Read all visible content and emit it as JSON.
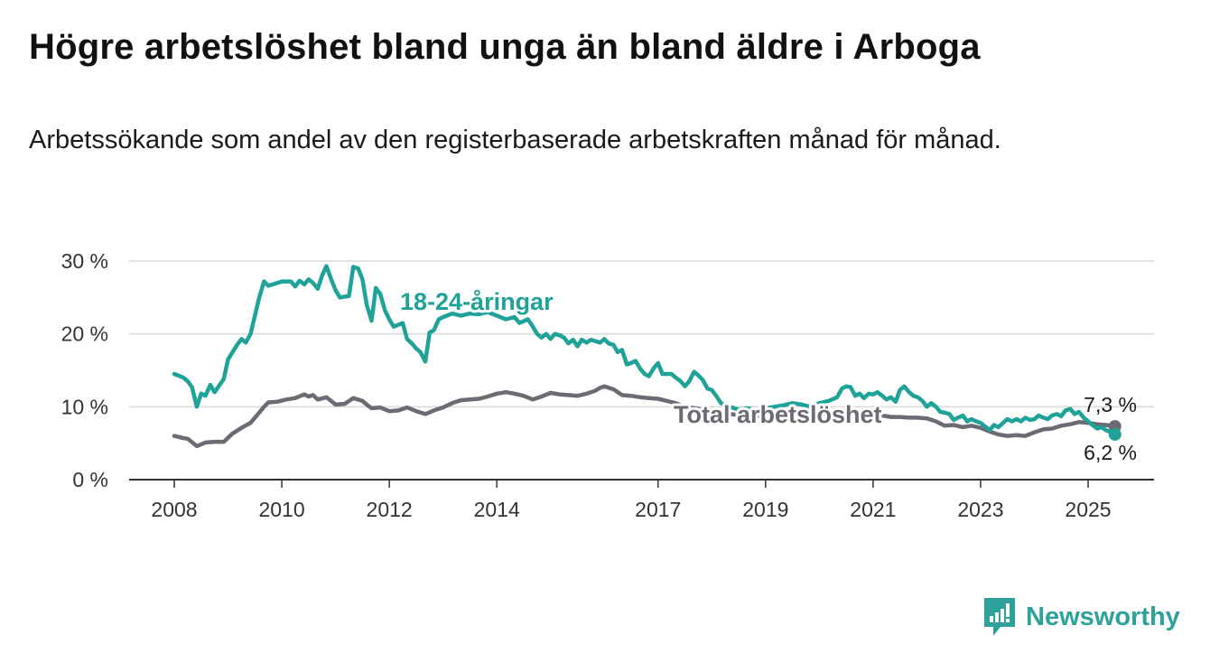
{
  "title": "Högre arbetslöshet bland unga än bland äldre i Arboga",
  "subtitle": "Arbetssökande som andel av den registerbaserade arbetskraften månad för månad.",
  "brand": {
    "name": "Newsworthy",
    "icon": "newsworthy-logo-icon",
    "color": "#2ea29a"
  },
  "chart_data": {
    "type": "line",
    "title": "Högre arbetslöshet bland unga än bland äldre i Arboga",
    "subtitle": "Arbetssökande som andel av den registerbaserade arbetskraften månad för månad.",
    "xlabel": "",
    "ylabel": "",
    "xlim": [
      2007.5,
      2026.25
    ],
    "ylim": [
      0,
      30
    ],
    "grid": true,
    "legend": "inline labels",
    "x_ticks": [
      2008,
      2010,
      2012,
      2014,
      2017,
      2019,
      2021,
      2023,
      2025
    ],
    "x_tick_labels": [
      "2008",
      "2010",
      "2012",
      "2014",
      "2017",
      "2019",
      "2021",
      "2023",
      "2025"
    ],
    "y_ticks": [
      0,
      10,
      20,
      30
    ],
    "y_tick_labels": [
      "0 %",
      "10 %",
      "20 %",
      "30 %"
    ],
    "series": [
      {
        "name": "18-24-åringar",
        "color": "#1fa398",
        "end_label": "6,2 %",
        "points": [
          [
            2008.0,
            14.5
          ],
          [
            2008.17,
            14.0
          ],
          [
            2008.25,
            13.5
          ],
          [
            2008.33,
            12.7
          ],
          [
            2008.42,
            10.0
          ],
          [
            2008.5,
            11.8
          ],
          [
            2008.58,
            11.5
          ],
          [
            2008.67,
            13.0
          ],
          [
            2008.75,
            12.0
          ],
          [
            2008.92,
            13.8
          ],
          [
            2009.0,
            16.5
          ],
          [
            2009.17,
            18.5
          ],
          [
            2009.25,
            19.3
          ],
          [
            2009.33,
            18.8
          ],
          [
            2009.42,
            20.0
          ],
          [
            2009.5,
            22.5
          ],
          [
            2009.58,
            25.0
          ],
          [
            2009.67,
            27.2
          ],
          [
            2009.75,
            26.6
          ],
          [
            2009.92,
            27.0
          ],
          [
            2010.0,
            27.2
          ],
          [
            2010.17,
            27.2
          ],
          [
            2010.25,
            26.5
          ],
          [
            2010.33,
            27.3
          ],
          [
            2010.42,
            26.8
          ],
          [
            2010.5,
            27.5
          ],
          [
            2010.58,
            27.0
          ],
          [
            2010.67,
            26.2
          ],
          [
            2010.75,
            28.0
          ],
          [
            2010.83,
            29.3
          ],
          [
            2010.92,
            27.5
          ],
          [
            2011.0,
            26.0
          ],
          [
            2011.08,
            25.0
          ],
          [
            2011.25,
            25.2
          ],
          [
            2011.33,
            29.2
          ],
          [
            2011.42,
            29.0
          ],
          [
            2011.5,
            27.5
          ],
          [
            2011.58,
            24.0
          ],
          [
            2011.67,
            21.8
          ],
          [
            2011.75,
            26.3
          ],
          [
            2011.83,
            25.5
          ],
          [
            2011.92,
            23.2
          ],
          [
            2012.0,
            22.0
          ],
          [
            2012.08,
            21.0
          ],
          [
            2012.25,
            21.5
          ],
          [
            2012.33,
            19.3
          ],
          [
            2012.42,
            18.7
          ],
          [
            2012.5,
            18.0
          ],
          [
            2012.58,
            17.5
          ],
          [
            2012.67,
            16.2
          ],
          [
            2012.75,
            20.2
          ],
          [
            2012.83,
            20.5
          ],
          [
            2012.92,
            22.0
          ],
          [
            2013.0,
            22.3
          ],
          [
            2013.17,
            22.8
          ],
          [
            2013.33,
            22.5
          ],
          [
            2013.5,
            22.8
          ],
          [
            2013.67,
            22.7
          ],
          [
            2013.83,
            23.0
          ],
          [
            2014.0,
            22.5
          ],
          [
            2014.17,
            22.0
          ],
          [
            2014.33,
            22.3
          ],
          [
            2014.42,
            21.5
          ],
          [
            2014.58,
            22.0
          ],
          [
            2014.67,
            21.0
          ],
          [
            2014.75,
            20.0
          ],
          [
            2014.83,
            19.5
          ],
          [
            2014.92,
            20.0
          ],
          [
            2015.0,
            19.3
          ],
          [
            2015.08,
            20.0
          ],
          [
            2015.17,
            19.8
          ],
          [
            2015.25,
            19.5
          ],
          [
            2015.33,
            18.7
          ],
          [
            2015.42,
            19.2
          ],
          [
            2015.5,
            18.3
          ],
          [
            2015.58,
            19.2
          ],
          [
            2015.67,
            18.8
          ],
          [
            2015.75,
            19.2
          ],
          [
            2015.92,
            18.8
          ],
          [
            2016.0,
            19.3
          ],
          [
            2016.08,
            18.7
          ],
          [
            2016.17,
            18.5
          ],
          [
            2016.25,
            17.5
          ],
          [
            2016.33,
            17.8
          ],
          [
            2016.42,
            15.8
          ],
          [
            2016.5,
            16.0
          ],
          [
            2016.58,
            16.3
          ],
          [
            2016.67,
            15.2
          ],
          [
            2016.75,
            14.5
          ],
          [
            2016.83,
            14.2
          ],
          [
            2016.92,
            15.3
          ],
          [
            2017.0,
            16.0
          ],
          [
            2017.08,
            14.5
          ],
          [
            2017.25,
            14.5
          ],
          [
            2017.33,
            14.0
          ],
          [
            2017.42,
            13.5
          ],
          [
            2017.5,
            12.8
          ],
          [
            2017.58,
            13.5
          ],
          [
            2017.67,
            14.8
          ],
          [
            2017.75,
            14.3
          ],
          [
            2017.83,
            13.7
          ],
          [
            2017.92,
            12.5
          ],
          [
            2018.0,
            12.3
          ],
          [
            2018.08,
            11.5
          ],
          [
            2018.17,
            10.5
          ],
          [
            2018.33,
            10.0
          ],
          [
            2018.5,
            9.6
          ],
          [
            2018.67,
            9.8
          ],
          [
            2018.83,
            9.5
          ],
          [
            2019.0,
            9.8
          ],
          [
            2019.17,
            10.0
          ],
          [
            2019.33,
            10.2
          ],
          [
            2019.5,
            10.5
          ],
          [
            2019.67,
            10.3
          ],
          [
            2019.83,
            10.0
          ],
          [
            2020.0,
            10.5
          ],
          [
            2020.17,
            10.8
          ],
          [
            2020.33,
            11.3
          ],
          [
            2020.42,
            12.5
          ],
          [
            2020.5,
            12.8
          ],
          [
            2020.58,
            12.7
          ],
          [
            2020.67,
            11.5
          ],
          [
            2020.75,
            11.8
          ],
          [
            2020.83,
            11.2
          ],
          [
            2020.92,
            11.8
          ],
          [
            2021.0,
            11.7
          ],
          [
            2021.08,
            12.0
          ],
          [
            2021.17,
            11.5
          ],
          [
            2021.25,
            11.0
          ],
          [
            2021.33,
            11.3
          ],
          [
            2021.42,
            10.7
          ],
          [
            2021.5,
            12.3
          ],
          [
            2021.58,
            12.8
          ],
          [
            2021.67,
            12.0
          ],
          [
            2021.75,
            11.5
          ],
          [
            2021.83,
            11.3
          ],
          [
            2021.92,
            10.8
          ],
          [
            2022.0,
            10.0
          ],
          [
            2022.08,
            10.5
          ],
          [
            2022.17,
            10.0
          ],
          [
            2022.25,
            9.3
          ],
          [
            2022.33,
            9.2
          ],
          [
            2022.42,
            9.0
          ],
          [
            2022.5,
            8.2
          ],
          [
            2022.58,
            8.5
          ],
          [
            2022.67,
            8.8
          ],
          [
            2022.75,
            8.0
          ],
          [
            2022.83,
            8.3
          ],
          [
            2022.92,
            8.0
          ],
          [
            2023.0,
            7.8
          ],
          [
            2023.08,
            7.3
          ],
          [
            2023.17,
            6.8
          ],
          [
            2023.25,
            7.5
          ],
          [
            2023.33,
            7.2
          ],
          [
            2023.42,
            7.8
          ],
          [
            2023.5,
            8.3
          ],
          [
            2023.58,
            8.0
          ],
          [
            2023.67,
            8.3
          ],
          [
            2023.75,
            8.0
          ],
          [
            2023.83,
            8.5
          ],
          [
            2023.92,
            8.2
          ],
          [
            2024.0,
            8.3
          ],
          [
            2024.08,
            8.8
          ],
          [
            2024.17,
            8.5
          ],
          [
            2024.25,
            8.3
          ],
          [
            2024.33,
            8.8
          ],
          [
            2024.42,
            9.0
          ],
          [
            2024.5,
            8.7
          ],
          [
            2024.58,
            9.5
          ],
          [
            2024.67,
            9.7
          ],
          [
            2024.75,
            9.0
          ],
          [
            2024.83,
            9.3
          ],
          [
            2024.92,
            8.5
          ],
          [
            2025.0,
            8.0
          ],
          [
            2025.08,
            7.5
          ],
          [
            2025.17,
            7.0
          ],
          [
            2025.25,
            7.2
          ],
          [
            2025.33,
            6.8
          ],
          [
            2025.42,
            6.5
          ],
          [
            2025.5,
            6.2
          ]
        ]
      },
      {
        "name": "Total arbetslöshet",
        "color": "#6b6b73",
        "end_label": "7,3 %",
        "points": [
          [
            2008.0,
            6.0
          ],
          [
            2008.17,
            5.7
          ],
          [
            2008.25,
            5.6
          ],
          [
            2008.42,
            4.6
          ],
          [
            2008.58,
            5.1
          ],
          [
            2008.75,
            5.2
          ],
          [
            2008.92,
            5.2
          ],
          [
            2009.08,
            6.3
          ],
          [
            2009.25,
            7.1
          ],
          [
            2009.42,
            7.8
          ],
          [
            2009.58,
            9.2
          ],
          [
            2009.67,
            10.0
          ],
          [
            2009.75,
            10.6
          ],
          [
            2009.92,
            10.7
          ],
          [
            2010.08,
            11.0
          ],
          [
            2010.25,
            11.2
          ],
          [
            2010.42,
            11.7
          ],
          [
            2010.5,
            11.4
          ],
          [
            2010.58,
            11.6
          ],
          [
            2010.67,
            11.0
          ],
          [
            2010.83,
            11.3
          ],
          [
            2010.92,
            10.8
          ],
          [
            2011.0,
            10.3
          ],
          [
            2011.17,
            10.4
          ],
          [
            2011.33,
            11.2
          ],
          [
            2011.5,
            10.8
          ],
          [
            2011.58,
            10.3
          ],
          [
            2011.67,
            9.8
          ],
          [
            2011.83,
            9.9
          ],
          [
            2012.0,
            9.4
          ],
          [
            2012.17,
            9.5
          ],
          [
            2012.33,
            9.9
          ],
          [
            2012.5,
            9.4
          ],
          [
            2012.67,
            9.0
          ],
          [
            2012.83,
            9.5
          ],
          [
            2013.0,
            9.9
          ],
          [
            2013.17,
            10.5
          ],
          [
            2013.33,
            10.9
          ],
          [
            2013.5,
            11.0
          ],
          [
            2013.67,
            11.1
          ],
          [
            2013.83,
            11.4
          ],
          [
            2014.0,
            11.8
          ],
          [
            2014.17,
            12.0
          ],
          [
            2014.33,
            11.8
          ],
          [
            2014.5,
            11.5
          ],
          [
            2014.67,
            11.0
          ],
          [
            2014.83,
            11.4
          ],
          [
            2015.0,
            11.9
          ],
          [
            2015.17,
            11.7
          ],
          [
            2015.33,
            11.6
          ],
          [
            2015.5,
            11.5
          ],
          [
            2015.67,
            11.8
          ],
          [
            2015.83,
            12.2
          ],
          [
            2015.92,
            12.6
          ],
          [
            2016.0,
            12.8
          ],
          [
            2016.17,
            12.4
          ],
          [
            2016.33,
            11.6
          ],
          [
            2016.5,
            11.5
          ],
          [
            2016.67,
            11.3
          ],
          [
            2016.83,
            11.2
          ],
          [
            2017.0,
            11.1
          ],
          [
            2017.17,
            10.8
          ],
          [
            2017.33,
            10.5
          ],
          [
            2017.5,
            10.0
          ],
          [
            2017.67,
            9.8
          ],
          [
            2017.83,
            9.6
          ],
          [
            2018.0,
            9.4
          ],
          [
            2018.17,
            9.2
          ],
          [
            2018.33,
            9.0
          ],
          [
            2018.5,
            8.9
          ],
          [
            2018.67,
            8.9
          ],
          [
            2018.83,
            8.7
          ],
          [
            2019.0,
            8.8
          ],
          [
            2019.17,
            8.9
          ],
          [
            2019.33,
            8.8
          ],
          [
            2019.5,
            9.0
          ],
          [
            2019.67,
            8.9
          ],
          [
            2019.83,
            8.9
          ],
          [
            2020.0,
            9.0
          ],
          [
            2020.17,
            9.1
          ],
          [
            2020.33,
            9.4
          ],
          [
            2020.5,
            9.3
          ],
          [
            2020.67,
            9.1
          ],
          [
            2020.83,
            9.0
          ],
          [
            2021.0,
            8.9
          ],
          [
            2021.17,
            8.8
          ],
          [
            2021.33,
            8.6
          ],
          [
            2021.5,
            8.6
          ],
          [
            2021.67,
            8.5
          ],
          [
            2021.83,
            8.5
          ],
          [
            2022.0,
            8.4
          ],
          [
            2022.17,
            8.0
          ],
          [
            2022.33,
            7.4
          ],
          [
            2022.5,
            7.5
          ],
          [
            2022.67,
            7.2
          ],
          [
            2022.83,
            7.4
          ],
          [
            2023.0,
            7.1
          ],
          [
            2023.17,
            6.6
          ],
          [
            2023.33,
            6.2
          ],
          [
            2023.5,
            6.0
          ],
          [
            2023.67,
            6.1
          ],
          [
            2023.83,
            6.0
          ],
          [
            2024.0,
            6.5
          ],
          [
            2024.17,
            6.9
          ],
          [
            2024.33,
            7.0
          ],
          [
            2024.5,
            7.4
          ],
          [
            2024.67,
            7.6
          ],
          [
            2024.83,
            7.9
          ],
          [
            2025.0,
            7.8
          ],
          [
            2025.17,
            7.6
          ],
          [
            2025.33,
            7.5
          ],
          [
            2025.5,
            7.3
          ]
        ]
      }
    ]
  }
}
